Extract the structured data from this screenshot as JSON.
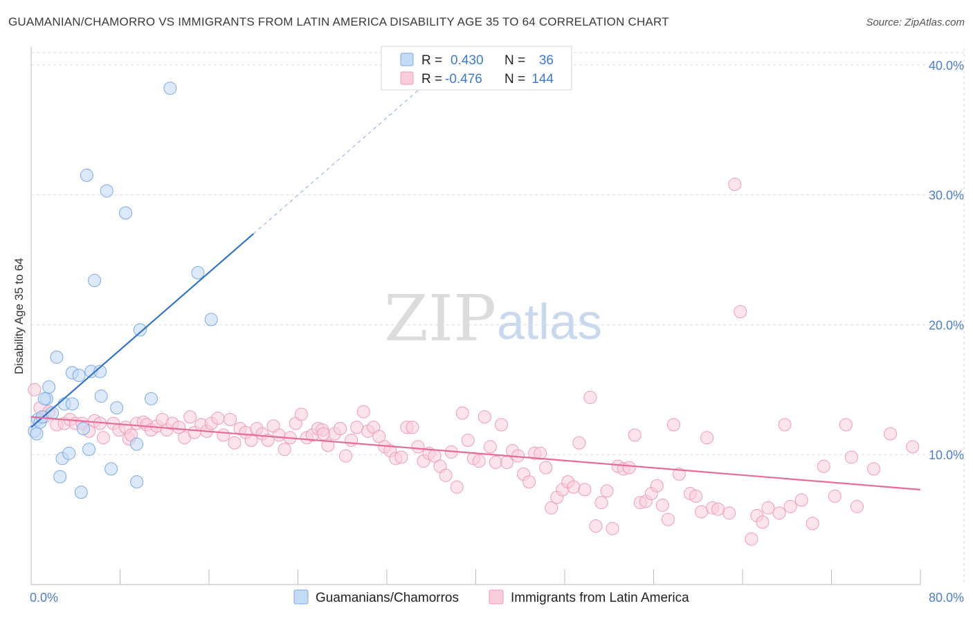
{
  "title": "GUAMANIAN/CHAMORRO VS IMMIGRANTS FROM LATIN AMERICA DISABILITY AGE 35 TO 64 CORRELATION CHART",
  "source": "Source: ZipAtlas.com",
  "watermark": {
    "zip": "ZIP",
    "atlas": "atlas"
  },
  "colors": {
    "blue": "#7aaae6",
    "blue_fill": "#c5daf5",
    "blue_line": "#2f72d0",
    "pink": "#f09ab8",
    "pink_fill": "#f9cddc",
    "pink_line": "#e86a98",
    "tick_text": "#4a7fd0",
    "grid": "#dddddd"
  },
  "legend": {
    "rows": [
      {
        "r_label": "R =",
        "r_value": "0.430",
        "n_label": "N =",
        "n_value": "36"
      },
      {
        "r_label": "R =",
        "r_value": "-0.476",
        "n_label": "N =",
        "n_value": "144"
      }
    ]
  },
  "chart_data": {
    "type": "scatter",
    "title": "GUAMANIAN/CHAMORRO VS IMMIGRANTS FROM LATIN AMERICA DISABILITY AGE 35 TO 64 CORRELATION CHART",
    "xlabel": "",
    "ylabel": "Disability Age 35 to 64",
    "xlim": [
      0,
      80
    ],
    "ylim": [
      0,
      41
    ],
    "x_tick_labels": [
      "0.0%",
      "80.0%"
    ],
    "y_ticks": [
      10,
      20,
      30,
      40
    ],
    "y_tick_labels": [
      "10.0%",
      "20.0%",
      "30.0%",
      "40.0%"
    ],
    "grid": true,
    "series": [
      {
        "name": "Guamanians/Chamorros",
        "R": 0.43,
        "N": 36,
        "trend": {
          "x0": 0,
          "y0": 12.1,
          "x1": 20,
          "y1": 27.0,
          "dashed_to_x": 35
        },
        "points": [
          [
            0.3,
            11.8
          ],
          [
            0.5,
            11.6
          ],
          [
            0.6,
            12.7
          ],
          [
            0.8,
            12.5
          ],
          [
            1.0,
            12.9
          ],
          [
            1.4,
            14.3
          ],
          [
            1.6,
            15.2
          ],
          [
            1.9,
            13.2
          ],
          [
            2.3,
            17.5
          ],
          [
            2.6,
            8.3
          ],
          [
            2.8,
            9.7
          ],
          [
            3.0,
            13.9
          ],
          [
            3.4,
            10.1
          ],
          [
            3.7,
            13.9
          ],
          [
            3.7,
            16.3
          ],
          [
            4.3,
            16.1
          ],
          [
            4.5,
            7.1
          ],
          [
            4.7,
            12.0
          ],
          [
            5.0,
            31.5
          ],
          [
            5.2,
            10.4
          ],
          [
            5.4,
            16.4
          ],
          [
            5.7,
            23.4
          ],
          [
            6.2,
            16.4
          ],
          [
            6.3,
            14.5
          ],
          [
            6.8,
            30.3
          ],
          [
            7.2,
            8.9
          ],
          [
            7.7,
            13.6
          ],
          [
            8.5,
            28.6
          ],
          [
            9.5,
            10.8
          ],
          [
            9.5,
            7.9
          ],
          [
            9.8,
            19.6
          ],
          [
            10.8,
            14.3
          ],
          [
            12.5,
            38.2
          ],
          [
            15.0,
            24.0
          ],
          [
            16.2,
            20.4
          ],
          [
            1.2,
            14.3
          ]
        ]
      },
      {
        "name": "Immigrants from Latin America",
        "R": -0.476,
        "N": 144,
        "trend": {
          "x0": 0,
          "y0": 12.9,
          "x1": 80,
          "y1": 7.3
        },
        "points": [
          [
            0.3,
            15.0
          ],
          [
            0.8,
            13.6
          ],
          [
            1.2,
            12.9
          ],
          [
            1.6,
            13.3
          ],
          [
            2.3,
            12.3
          ],
          [
            3.0,
            12.4
          ],
          [
            3.5,
            12.7
          ],
          [
            4.0,
            12.4
          ],
          [
            4.6,
            12.4
          ],
          [
            5.2,
            11.8
          ],
          [
            5.7,
            12.6
          ],
          [
            6.2,
            12.4
          ],
          [
            6.5,
            11.3
          ],
          [
            7.4,
            12.4
          ],
          [
            7.9,
            11.9
          ],
          [
            8.5,
            12.1
          ],
          [
            8.8,
            11.2
          ],
          [
            9.0,
            11.5
          ],
          [
            9.5,
            12.4
          ],
          [
            10.1,
            12.5
          ],
          [
            10.4,
            12.3
          ],
          [
            10.8,
            11.9
          ],
          [
            11.3,
            12.2
          ],
          [
            11.8,
            12.7
          ],
          [
            12.2,
            11.9
          ],
          [
            12.7,
            12.4
          ],
          [
            13.3,
            12.1
          ],
          [
            13.8,
            11.3
          ],
          [
            14.3,
            12.9
          ],
          [
            14.7,
            11.7
          ],
          [
            15.3,
            12.3
          ],
          [
            15.8,
            11.8
          ],
          [
            16.2,
            12.4
          ],
          [
            16.8,
            12.8
          ],
          [
            17.3,
            11.5
          ],
          [
            17.9,
            12.7
          ],
          [
            18.3,
            10.9
          ],
          [
            18.8,
            12.0
          ],
          [
            19.3,
            11.7
          ],
          [
            19.8,
            11.1
          ],
          [
            20.3,
            12.0
          ],
          [
            20.8,
            11.6
          ],
          [
            21.3,
            11.1
          ],
          [
            21.8,
            12.2
          ],
          [
            22.3,
            11.5
          ],
          [
            22.8,
            10.4
          ],
          [
            23.3,
            11.3
          ],
          [
            23.8,
            12.4
          ],
          [
            24.3,
            13.1
          ],
          [
            24.8,
            11.3
          ],
          [
            25.3,
            11.5
          ],
          [
            25.8,
            12.0
          ],
          [
            26.2,
            11.9
          ],
          [
            26.7,
            10.7
          ],
          [
            27.3,
            11.6
          ],
          [
            27.8,
            12.0
          ],
          [
            28.3,
            9.9
          ],
          [
            28.8,
            11.1
          ],
          [
            29.3,
            12.1
          ],
          [
            29.9,
            13.3
          ],
          [
            30.3,
            11.8
          ],
          [
            30.8,
            12.1
          ],
          [
            31.3,
            11.4
          ],
          [
            31.8,
            10.6
          ],
          [
            32.3,
            10.3
          ],
          [
            32.8,
            9.7
          ],
          [
            33.3,
            9.8
          ],
          [
            33.8,
            12.1
          ],
          [
            34.3,
            12.1
          ],
          [
            34.8,
            10.6
          ],
          [
            35.3,
            9.5
          ],
          [
            35.8,
            10.1
          ],
          [
            36.3,
            9.9
          ],
          [
            36.8,
            9.1
          ],
          [
            37.3,
            8.4
          ],
          [
            37.8,
            10.2
          ],
          [
            38.3,
            7.5
          ],
          [
            38.8,
            13.2
          ],
          [
            39.3,
            11.1
          ],
          [
            39.8,
            9.7
          ],
          [
            40.3,
            9.5
          ],
          [
            40.8,
            12.9
          ],
          [
            41.3,
            10.6
          ],
          [
            41.8,
            9.4
          ],
          [
            42.3,
            12.3
          ],
          [
            42.8,
            9.4
          ],
          [
            43.3,
            10.3
          ],
          [
            43.8,
            9.9
          ],
          [
            44.3,
            8.5
          ],
          [
            44.8,
            7.9
          ],
          [
            45.3,
            10.1
          ],
          [
            45.8,
            10.1
          ],
          [
            46.3,
            9.0
          ],
          [
            46.8,
            5.9
          ],
          [
            47.3,
            6.7
          ],
          [
            47.8,
            7.3
          ],
          [
            48.3,
            7.9
          ],
          [
            48.8,
            7.5
          ],
          [
            49.3,
            10.9
          ],
          [
            49.8,
            7.3
          ],
          [
            50.3,
            14.4
          ],
          [
            50.8,
            4.5
          ],
          [
            51.3,
            6.3
          ],
          [
            51.8,
            7.2
          ],
          [
            52.3,
            4.3
          ],
          [
            52.8,
            9.1
          ],
          [
            53.3,
            8.9
          ],
          [
            53.8,
            9.0
          ],
          [
            54.3,
            11.5
          ],
          [
            54.8,
            6.3
          ],
          [
            55.3,
            6.4
          ],
          [
            55.8,
            7.0
          ],
          [
            56.3,
            7.6
          ],
          [
            56.8,
            6.1
          ],
          [
            57.3,
            5.0
          ],
          [
            57.8,
            12.3
          ],
          [
            58.3,
            8.5
          ],
          [
            59.3,
            7.0
          ],
          [
            59.8,
            6.8
          ],
          [
            60.3,
            5.6
          ],
          [
            60.8,
            11.3
          ],
          [
            61.3,
            5.9
          ],
          [
            61.8,
            5.8
          ],
          [
            62.8,
            5.5
          ],
          [
            63.3,
            30.8
          ],
          [
            63.8,
            21.0
          ],
          [
            64.8,
            3.5
          ],
          [
            65.3,
            5.3
          ],
          [
            65.8,
            4.8
          ],
          [
            66.3,
            5.9
          ],
          [
            67.3,
            5.5
          ],
          [
            67.8,
            12.3
          ],
          [
            68.3,
            6.0
          ],
          [
            69.3,
            6.5
          ],
          [
            70.3,
            4.7
          ],
          [
            71.3,
            9.1
          ],
          [
            72.3,
            6.8
          ],
          [
            73.3,
            12.3
          ],
          [
            74.3,
            6.0
          ],
          [
            73.8,
            9.8
          ],
          [
            75.8,
            8.9
          ],
          [
            77.3,
            11.6
          ],
          [
            79.3,
            10.6
          ],
          [
            26.3,
            11.6
          ]
        ]
      }
    ]
  },
  "bottom_legend": [
    {
      "label": "Guamanians/Chamorros"
    },
    {
      "label": "Immigrants from Latin America"
    }
  ]
}
